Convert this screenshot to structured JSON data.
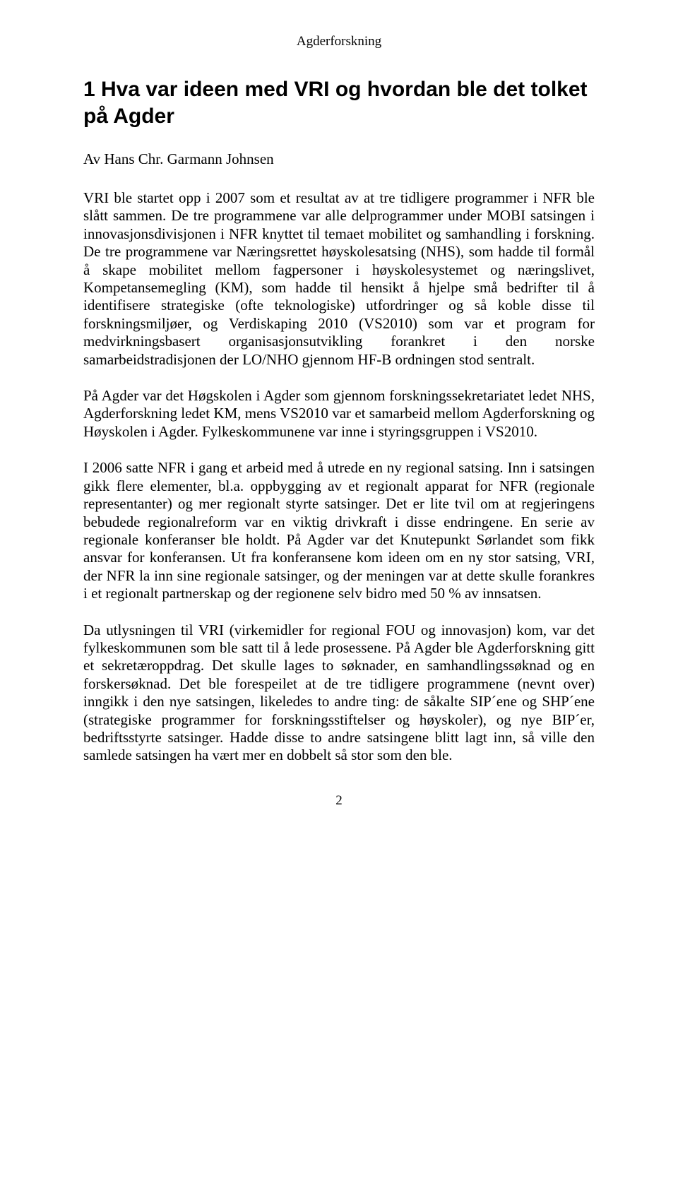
{
  "header": "Agderforskning",
  "title": "1 Hva var ideen med VRI og hvordan ble det tolket på Agder",
  "author": "Av Hans Chr. Garmann Johnsen",
  "paragraphs": [
    "VRI ble startet opp i 2007 som et resultat av at tre tidligere programmer i NFR ble slått sammen. De tre programmene var alle delprogrammer under MOBI satsingen i innovasjonsdivisjonen i NFR knyttet til temaet mobilitet og samhandling i forskning. De tre programmene var Næringsrettet høyskolesatsing (NHS), som hadde til formål å skape mobilitet mellom fagpersoner i høyskolesystemet og næringslivet, Kompetansemegling (KM), som hadde til hensikt å hjelpe små bedrifter til å identifisere strategiske (ofte teknologiske) utfordringer og så koble disse til forskningsmiljøer, og Verdiskaping 2010 (VS2010) som var et program for medvirkningsbasert organisasjonsutvikling forankret i den norske samarbeidstradisjonen der LO/NHO gjennom HF-B ordningen stod sentralt.",
    "På Agder var det Høgskolen i Agder som gjennom forskningssekretariatet ledet NHS, Agderforskning ledet KM, mens VS2010 var et samarbeid mellom Agderforskning og Høyskolen i Agder. Fylkeskommunene var inne i styringsgruppen i VS2010.",
    "I 2006 satte NFR i gang et arbeid med å utrede en ny regional satsing. Inn i satsingen gikk flere elementer, bl.a. oppbygging av et regionalt apparat for NFR (regionale representanter) og mer regionalt styrte satsinger. Det er lite tvil om at regjeringens bebudede regionalreform var en viktig drivkraft i disse endringene. En serie av regionale konferanser ble holdt. På Agder var det Knutepunkt Sørlandet som fikk ansvar for konferansen. Ut fra konferansene kom ideen om en ny stor satsing, VRI, der NFR la inn sine regionale satsinger, og der meningen var at dette skulle forankres i et regionalt partnerskap og der regionene selv bidro med 50 % av innsatsen.",
    "Da utlysningen til VRI (virkemidler for regional FOU og innovasjon) kom, var det fylkeskommunen som ble satt til å lede prosessene. På Agder ble Agderforskning gitt et sekretæroppdrag. Det skulle lages to søknader, en samhandlingssøknad og en forskersøknad. Det ble forespeilet at de tre tidligere programmene (nevnt over) inngikk i den nye satsingen, likeledes to andre ting: de såkalte SIP´ene og SHP´ene (strategiske programmer for forskningsstiftelser og høyskoler), og nye BIP´er, bedriftsstyrte satsinger. Hadde disse to andre satsingene blitt lagt inn, så ville den samlede satsingen ha vært mer en dobbelt så stor som den ble."
  ],
  "page_number": "2"
}
